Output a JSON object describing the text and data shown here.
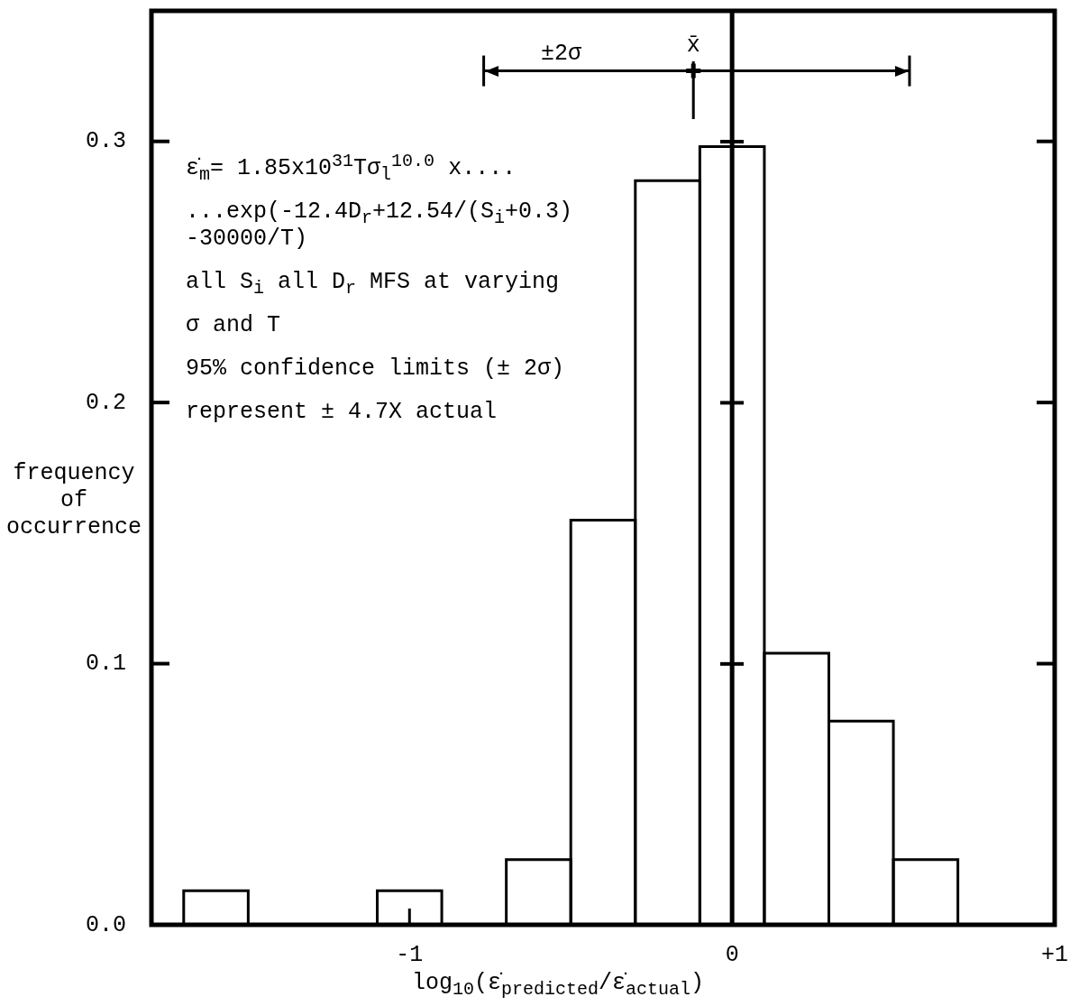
{
  "chart_data": {
    "type": "histogram",
    "xlabel": "log$_{10}$(ε̇$_{predicted}$/ε̇$_{actual}$)",
    "ylabel": "frequency of occurrence",
    "bins": [
      -1.7,
      -1.5,
      -1.3,
      -1.1,
      -0.9,
      -0.7,
      -0.5,
      -0.3,
      -0.1,
      0.1,
      0.3,
      0.5,
      0.7
    ],
    "values": [
      0.013,
      0,
      0,
      0.013,
      0,
      0.025,
      0.155,
      0.285,
      0.298,
      0.104,
      0.078,
      0.025
    ],
    "color": "#000000",
    "series": [
      {
        "type": "scatter",
        "color": "#000000",
        "marker": "cross",
        "x": [
          -0.12
        ],
        "values": [
          0.327
        ],
        "xerrors": [
          [
            -0.77,
            0.55
          ]
        ]
      }
    ],
    "xlim": [
      -1.8,
      1.0
    ],
    "xticks": [
      -1,
      0,
      {
        "value": 1,
        "label": "+1"
      }
    ],
    "ylim": [
      0,
      0.35
    ],
    "yticks": [
      {
        "value": 0,
        "label": "0.0"
      },
      0.1,
      0.2,
      0.3
    ],
    "ref_lines": [
      {
        "axis": "x",
        "value": 0
      },
      {
        "axis": "x",
        "value": -0.12,
        "label": "x̄"
      }
    ],
    "annotations": [
      {
        "text": "±2σ",
        "x": -0.53,
        "y": 0.327
      },
      "ε̇$_{m}$= 1.85x10$^{31}$Tσ$_{l}$$^{10.0}$ x....",
      "...exp(-12.4D$_{r}$+12.54/(S$_{i}$+0.3) -30000/T)",
      "all S$_{i}$ all D$_{r}$ MFS at varying",
      "σ and T",
      "95% confidence limits (± 2σ)",
      "represent ± 4.7X actual"
    ]
  }
}
